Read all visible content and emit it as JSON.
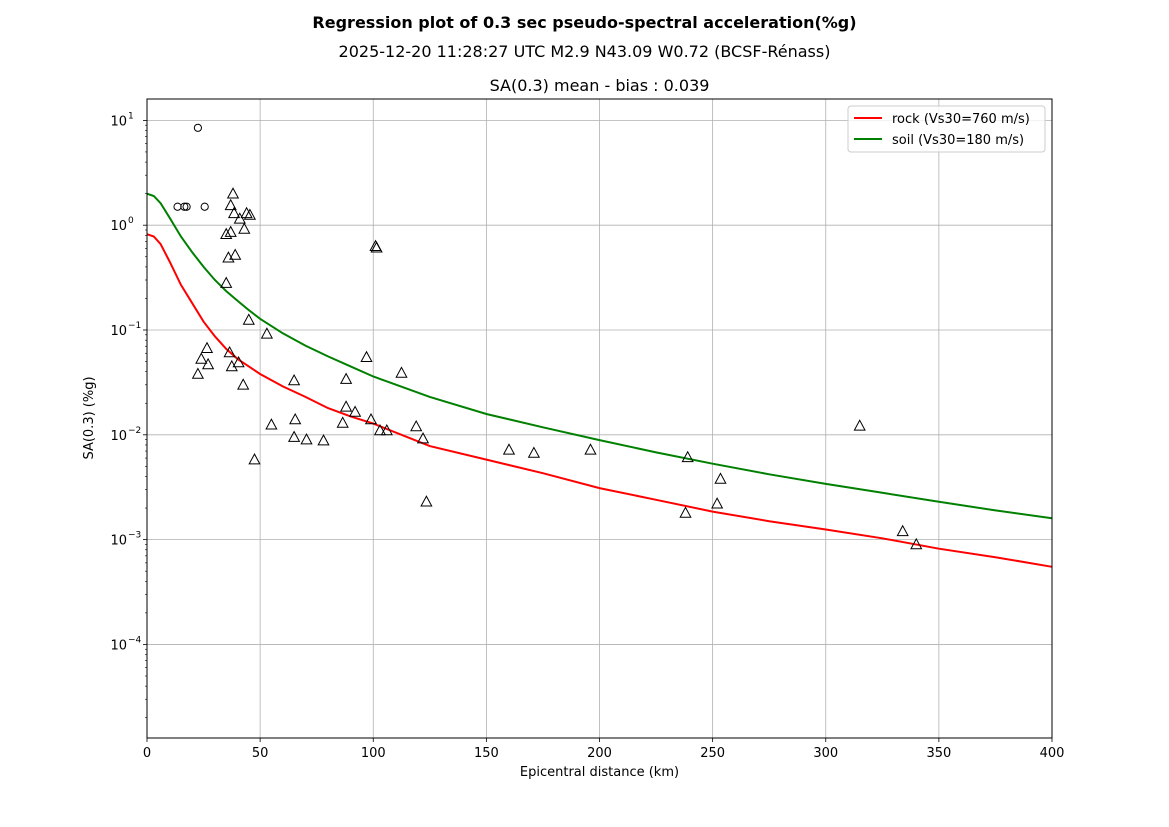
{
  "figure": {
    "suptitle": "Regression plot of 0.3 sec pseudo-spectral acceleration(%g)",
    "event_line": "2025-12-20 11:28:27 UTC M2.9 N43.09 W0.72 (BCSF-Rénass)",
    "axes_title": "SA(0.3) mean - bias : 0.039"
  },
  "chart_data": {
    "type": "scatter",
    "xlabel": "Epicentral distance (km)",
    "ylabel": "SA(0.3) (%g)",
    "xlim": [
      0,
      400
    ],
    "ylim": [
      1.28e-05,
      16
    ],
    "yscale": "log",
    "grid": true,
    "legend_position": "top-right",
    "x_ticks": [
      0,
      50,
      100,
      150,
      200,
      250,
      300,
      350,
      400
    ],
    "x_tick_labels": [
      "0",
      "50",
      "100",
      "150",
      "200",
      "250",
      "300",
      "350",
      "400"
    ],
    "y_ticks": [
      0.0001,
      0.001,
      0.01,
      0.1,
      1,
      10
    ],
    "y_tick_labels": [
      {
        "base": "10",
        "exp": "−4"
      },
      {
        "base": "10",
        "exp": "−3"
      },
      {
        "base": "10",
        "exp": "−2"
      },
      {
        "base": "10",
        "exp": "−1"
      },
      {
        "base": "10",
        "exp": "0"
      },
      {
        "base": "10",
        "exp": "1"
      }
    ],
    "lines": [
      {
        "name": "rock (Vs30=760 m/s)",
        "color": "#ff0000",
        "points": [
          [
            0,
            0.82
          ],
          [
            3,
            0.78
          ],
          [
            6,
            0.66
          ],
          [
            10,
            0.45
          ],
          [
            15,
            0.27
          ],
          [
            20,
            0.18
          ],
          [
            25,
            0.12
          ],
          [
            30,
            0.087
          ],
          [
            35,
            0.066
          ],
          [
            40,
            0.053
          ],
          [
            45,
            0.045
          ],
          [
            50,
            0.038
          ],
          [
            60,
            0.029
          ],
          [
            70,
            0.023
          ],
          [
            80,
            0.018
          ],
          [
            90,
            0.015
          ],
          [
            100,
            0.0128
          ],
          [
            125,
            0.0078
          ],
          [
            150,
            0.0058
          ],
          [
            175,
            0.0043
          ],
          [
            200,
            0.0031
          ],
          [
            225,
            0.0024
          ],
          [
            250,
            0.00185
          ],
          [
            275,
            0.0015
          ],
          [
            300,
            0.00125
          ],
          [
            325,
            0.00103
          ],
          [
            350,
            0.00082
          ],
          [
            375,
            0.00068
          ],
          [
            400,
            0.00055
          ]
        ]
      },
      {
        "name": "soil (Vs30=180 m/s)",
        "color": "#008000",
        "points": [
          [
            0,
            2.0
          ],
          [
            3,
            1.9
          ],
          [
            6,
            1.62
          ],
          [
            10,
            1.18
          ],
          [
            15,
            0.78
          ],
          [
            20,
            0.55
          ],
          [
            25,
            0.4
          ],
          [
            30,
            0.3
          ],
          [
            35,
            0.235
          ],
          [
            40,
            0.19
          ],
          [
            45,
            0.155
          ],
          [
            50,
            0.128
          ],
          [
            60,
            0.093
          ],
          [
            70,
            0.071
          ],
          [
            80,
            0.056
          ],
          [
            90,
            0.045
          ],
          [
            100,
            0.036
          ],
          [
            125,
            0.023
          ],
          [
            150,
            0.0158
          ],
          [
            175,
            0.0118
          ],
          [
            200,
            0.0089
          ],
          [
            225,
            0.0068
          ],
          [
            250,
            0.0053
          ],
          [
            275,
            0.0042
          ],
          [
            300,
            0.0034
          ],
          [
            325,
            0.0028
          ],
          [
            350,
            0.0023
          ],
          [
            375,
            0.0019
          ],
          [
            400,
            0.0016
          ]
        ]
      }
    ],
    "series": [
      {
        "marker": "circle",
        "points": [
          [
            22.5,
            8.5
          ],
          [
            13.5,
            1.5
          ],
          [
            16.5,
            1.5
          ],
          [
            17.5,
            1.5
          ],
          [
            25.5,
            1.5
          ]
        ]
      },
      {
        "marker": "triangle",
        "points": [
          [
            38,
            2.0
          ],
          [
            37,
            1.55
          ],
          [
            38.5,
            1.3
          ],
          [
            41,
            1.15
          ],
          [
            44,
            1.3
          ],
          [
            45.5,
            1.25
          ],
          [
            35,
            0.82
          ],
          [
            37,
            0.86
          ],
          [
            43,
            0.92
          ],
          [
            36,
            0.49
          ],
          [
            39,
            0.52
          ],
          [
            35,
            0.28
          ],
          [
            45,
            0.125
          ],
          [
            53,
            0.092
          ],
          [
            101,
            0.63
          ],
          [
            101.5,
            0.61
          ],
          [
            26.5,
            0.067
          ],
          [
            24,
            0.053
          ],
          [
            36.5,
            0.061
          ],
          [
            27,
            0.047
          ],
          [
            37.5,
            0.045
          ],
          [
            40.5,
            0.049
          ],
          [
            22.5,
            0.038
          ],
          [
            42.5,
            0.03
          ],
          [
            97,
            0.055
          ],
          [
            112.5,
            0.039
          ],
          [
            65,
            0.033
          ],
          [
            88,
            0.034
          ],
          [
            88,
            0.0185
          ],
          [
            92,
            0.0165
          ],
          [
            99,
            0.014
          ],
          [
            65.5,
            0.014
          ],
          [
            86.5,
            0.013
          ],
          [
            55,
            0.0125
          ],
          [
            65,
            0.0095
          ],
          [
            70.5,
            0.009
          ],
          [
            78,
            0.0088
          ],
          [
            103,
            0.011
          ],
          [
            106,
            0.011
          ],
          [
            119,
            0.012
          ],
          [
            122,
            0.0092
          ],
          [
            47.5,
            0.0058
          ],
          [
            123.5,
            0.0023
          ],
          [
            160,
            0.0072
          ],
          [
            171,
            0.0067
          ],
          [
            196,
            0.0072
          ],
          [
            239,
            0.0061
          ],
          [
            253.5,
            0.0038
          ],
          [
            238,
            0.0018
          ],
          [
            252,
            0.0022
          ],
          [
            315,
            0.0122
          ],
          [
            334,
            0.0012
          ],
          [
            340,
            0.0009
          ]
        ]
      }
    ]
  }
}
